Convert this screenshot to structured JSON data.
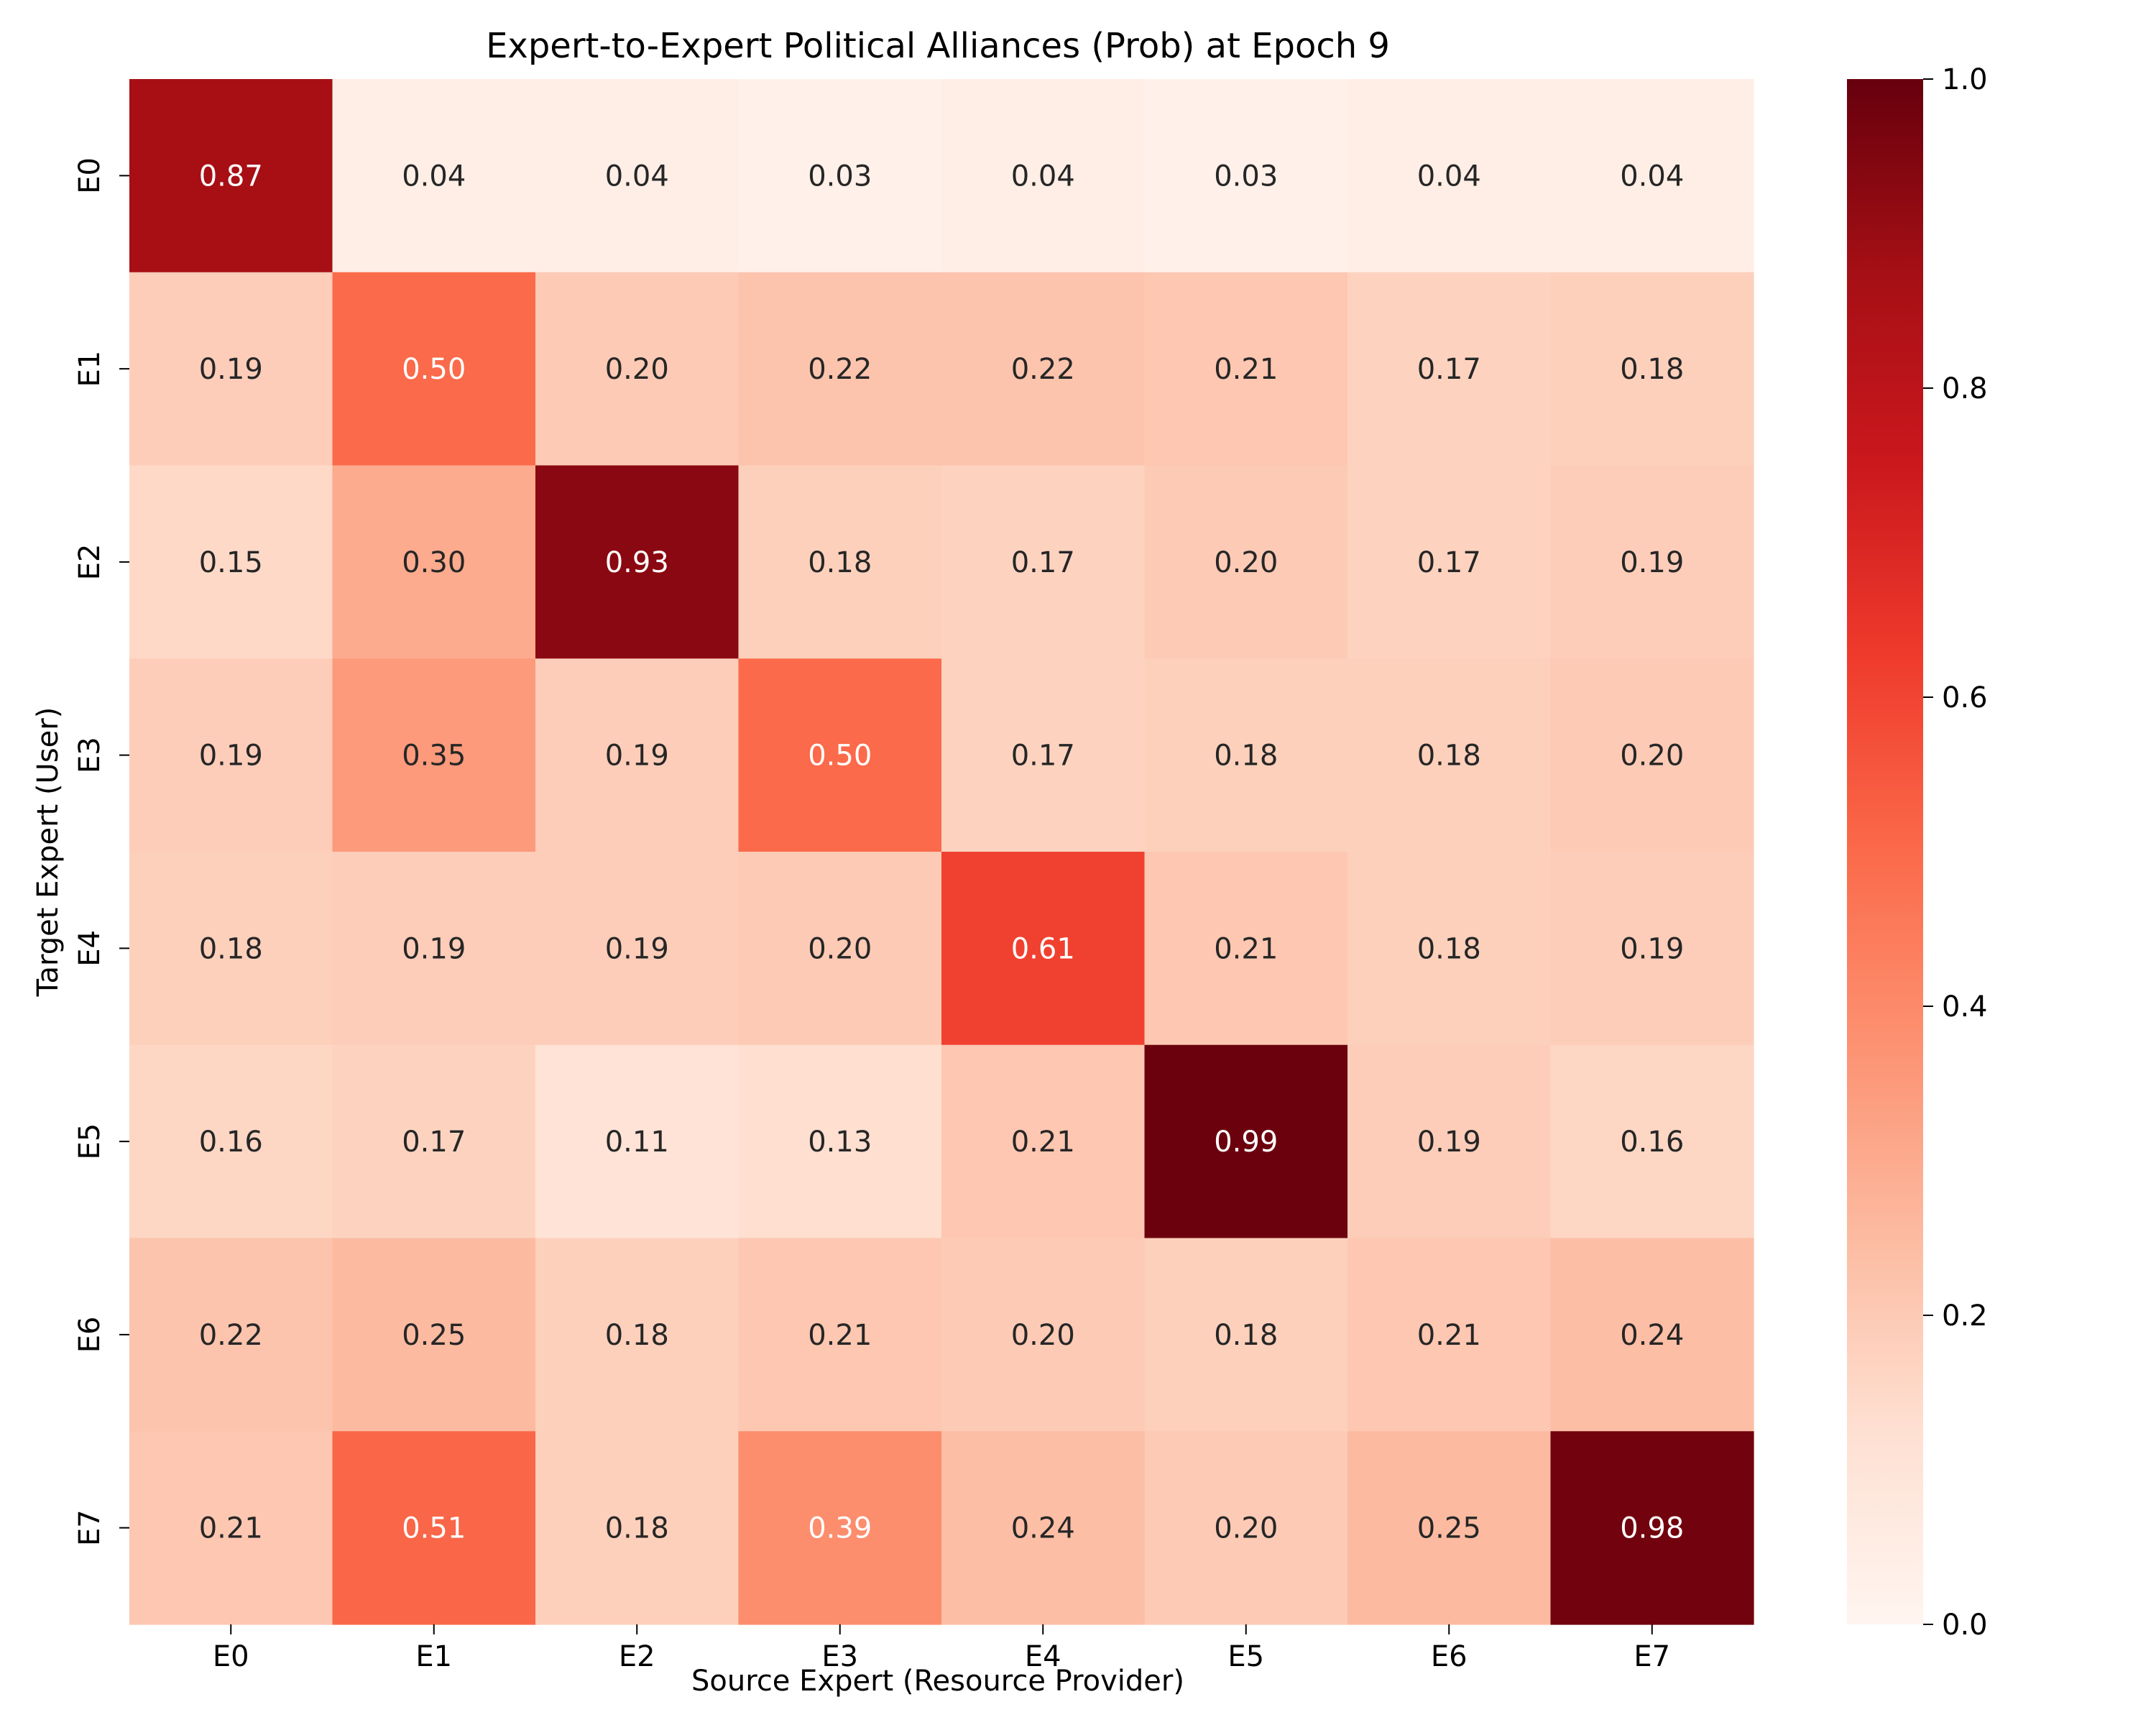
{
  "chart_data": {
    "type": "heatmap",
    "title": "Expert-to-Expert Political Alliances (Prob) at Epoch 9",
    "xlabel": "Source Expert (Resource Provider)",
    "ylabel": "Target Expert (User)",
    "x_categories": [
      "E0",
      "E1",
      "E2",
      "E3",
      "E4",
      "E5",
      "E6",
      "E7"
    ],
    "y_categories": [
      "E0",
      "E1",
      "E2",
      "E3",
      "E4",
      "E5",
      "E6",
      "E7"
    ],
    "values": [
      [
        0.87,
        0.04,
        0.04,
        0.03,
        0.04,
        0.03,
        0.04,
        0.04
      ],
      [
        0.19,
        0.5,
        0.2,
        0.22,
        0.22,
        0.21,
        0.17,
        0.18
      ],
      [
        0.15,
        0.3,
        0.93,
        0.18,
        0.17,
        0.2,
        0.17,
        0.19
      ],
      [
        0.19,
        0.35,
        0.19,
        0.5,
        0.17,
        0.18,
        0.18,
        0.2
      ],
      [
        0.18,
        0.19,
        0.19,
        0.2,
        0.61,
        0.21,
        0.18,
        0.19
      ],
      [
        0.16,
        0.17,
        0.11,
        0.13,
        0.21,
        0.99,
        0.19,
        0.16
      ],
      [
        0.22,
        0.25,
        0.18,
        0.21,
        0.2,
        0.18,
        0.21,
        0.24
      ],
      [
        0.21,
        0.51,
        0.18,
        0.39,
        0.24,
        0.2,
        0.25,
        0.98
      ]
    ],
    "value_format": "0.00",
    "colormap": "Reds",
    "vmin": 0.0,
    "vmax": 1.0,
    "colorbar_ticks": [
      "0.0",
      "0.2",
      "0.4",
      "0.6",
      "0.8",
      "1.0"
    ],
    "colorbar_tick_values": [
      0.0,
      0.2,
      0.4,
      0.6,
      0.8,
      1.0
    ],
    "grid": false
  }
}
